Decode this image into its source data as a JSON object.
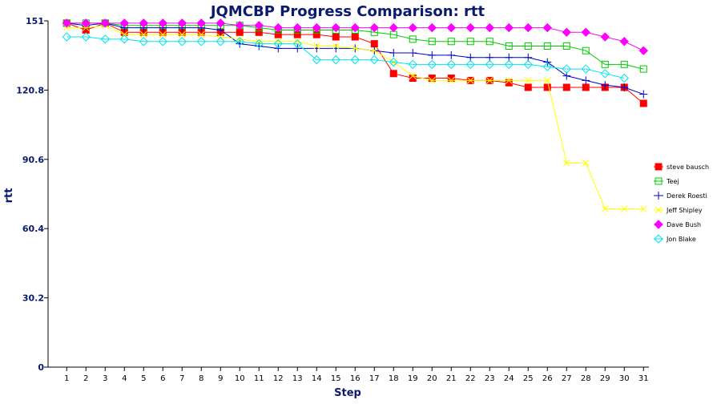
{
  "chart_data": {
    "type": "line",
    "title": "JQMCBP Progress Comparison: rtt",
    "xlabel": "Step",
    "ylabel": "rtt",
    "x": [
      1,
      2,
      3,
      4,
      5,
      6,
      7,
      8,
      9,
      10,
      11,
      12,
      13,
      14,
      15,
      16,
      17,
      18,
      19,
      20,
      21,
      22,
      23,
      24,
      25,
      26,
      27,
      28,
      29,
      30,
      31
    ],
    "ylim": [
      0,
      151
    ],
    "yticks": [
      0,
      30.2,
      60.4,
      90.6,
      120.8,
      151
    ],
    "ytick_labels": [
      "0",
      "30.2",
      "60.4",
      "90.6",
      "120.8",
      "151"
    ],
    "grid": false,
    "legend_position": "right",
    "series": [
      {
        "name": "steve bausch",
        "color": "#ff0000",
        "marker": "square-filled",
        "values": [
          150,
          147,
          150,
          146,
          146,
          146,
          146,
          146,
          146,
          146,
          146,
          145,
          145,
          145,
          144,
          144,
          141,
          128,
          126,
          126,
          126,
          125,
          125,
          124,
          122,
          122,
          122,
          122,
          122,
          122,
          115
        ]
      },
      {
        "name": "Teej",
        "color": "#00cc00",
        "marker": "square-open",
        "values": [
          150,
          150,
          150,
          149,
          149,
          149,
          149,
          149,
          149,
          149,
          148,
          147,
          147,
          147,
          147,
          147,
          146,
          145,
          143,
          142,
          142,
          142,
          142,
          140,
          140,
          140,
          140,
          138,
          132,
          132,
          130
        ]
      },
      {
        "name": "Derek Roesti",
        "color": "#0000cc",
        "marker": "plus",
        "values": [
          150,
          149,
          150,
          148,
          148,
          148,
          148,
          148,
          147,
          141,
          140,
          139,
          139,
          139,
          139,
          139,
          138,
          137,
          137,
          136,
          136,
          135,
          135,
          135,
          135,
          133,
          127,
          125,
          123,
          122,
          119
        ]
      },
      {
        "name": "Jeff Shipley",
        "color": "#ffff00",
        "marker": "cross",
        "values": [
          148,
          148,
          149,
          145,
          145,
          145,
          145,
          145,
          144,
          143,
          142,
          142,
          142,
          140,
          140,
          139,
          138,
          133,
          127,
          125,
          125,
          125,
          125,
          125,
          125,
          125,
          89,
          89,
          69,
          69,
          69
        ]
      },
      {
        "name": "Dave Bush",
        "color": "#ff00ff",
        "marker": "diamond-filled",
        "values": [
          150,
          150,
          150,
          150,
          150,
          150,
          150,
          150,
          150,
          149,
          149,
          148,
          148,
          148,
          148,
          148,
          148,
          148,
          148,
          148,
          148,
          148,
          148,
          148,
          148,
          148,
          146,
          146,
          144,
          142,
          138
        ]
      },
      {
        "name": "Jon Blake",
        "color": "#00e5ee",
        "marker": "diamond-open",
        "values": [
          144,
          144,
          143,
          143,
          142,
          142,
          142,
          142,
          142,
          142,
          141,
          141,
          141,
          134,
          134,
          134,
          134,
          133,
          132,
          132,
          132,
          132,
          132,
          132,
          132,
          131,
          130,
          130,
          128,
          126,
          null
        ]
      }
    ]
  }
}
